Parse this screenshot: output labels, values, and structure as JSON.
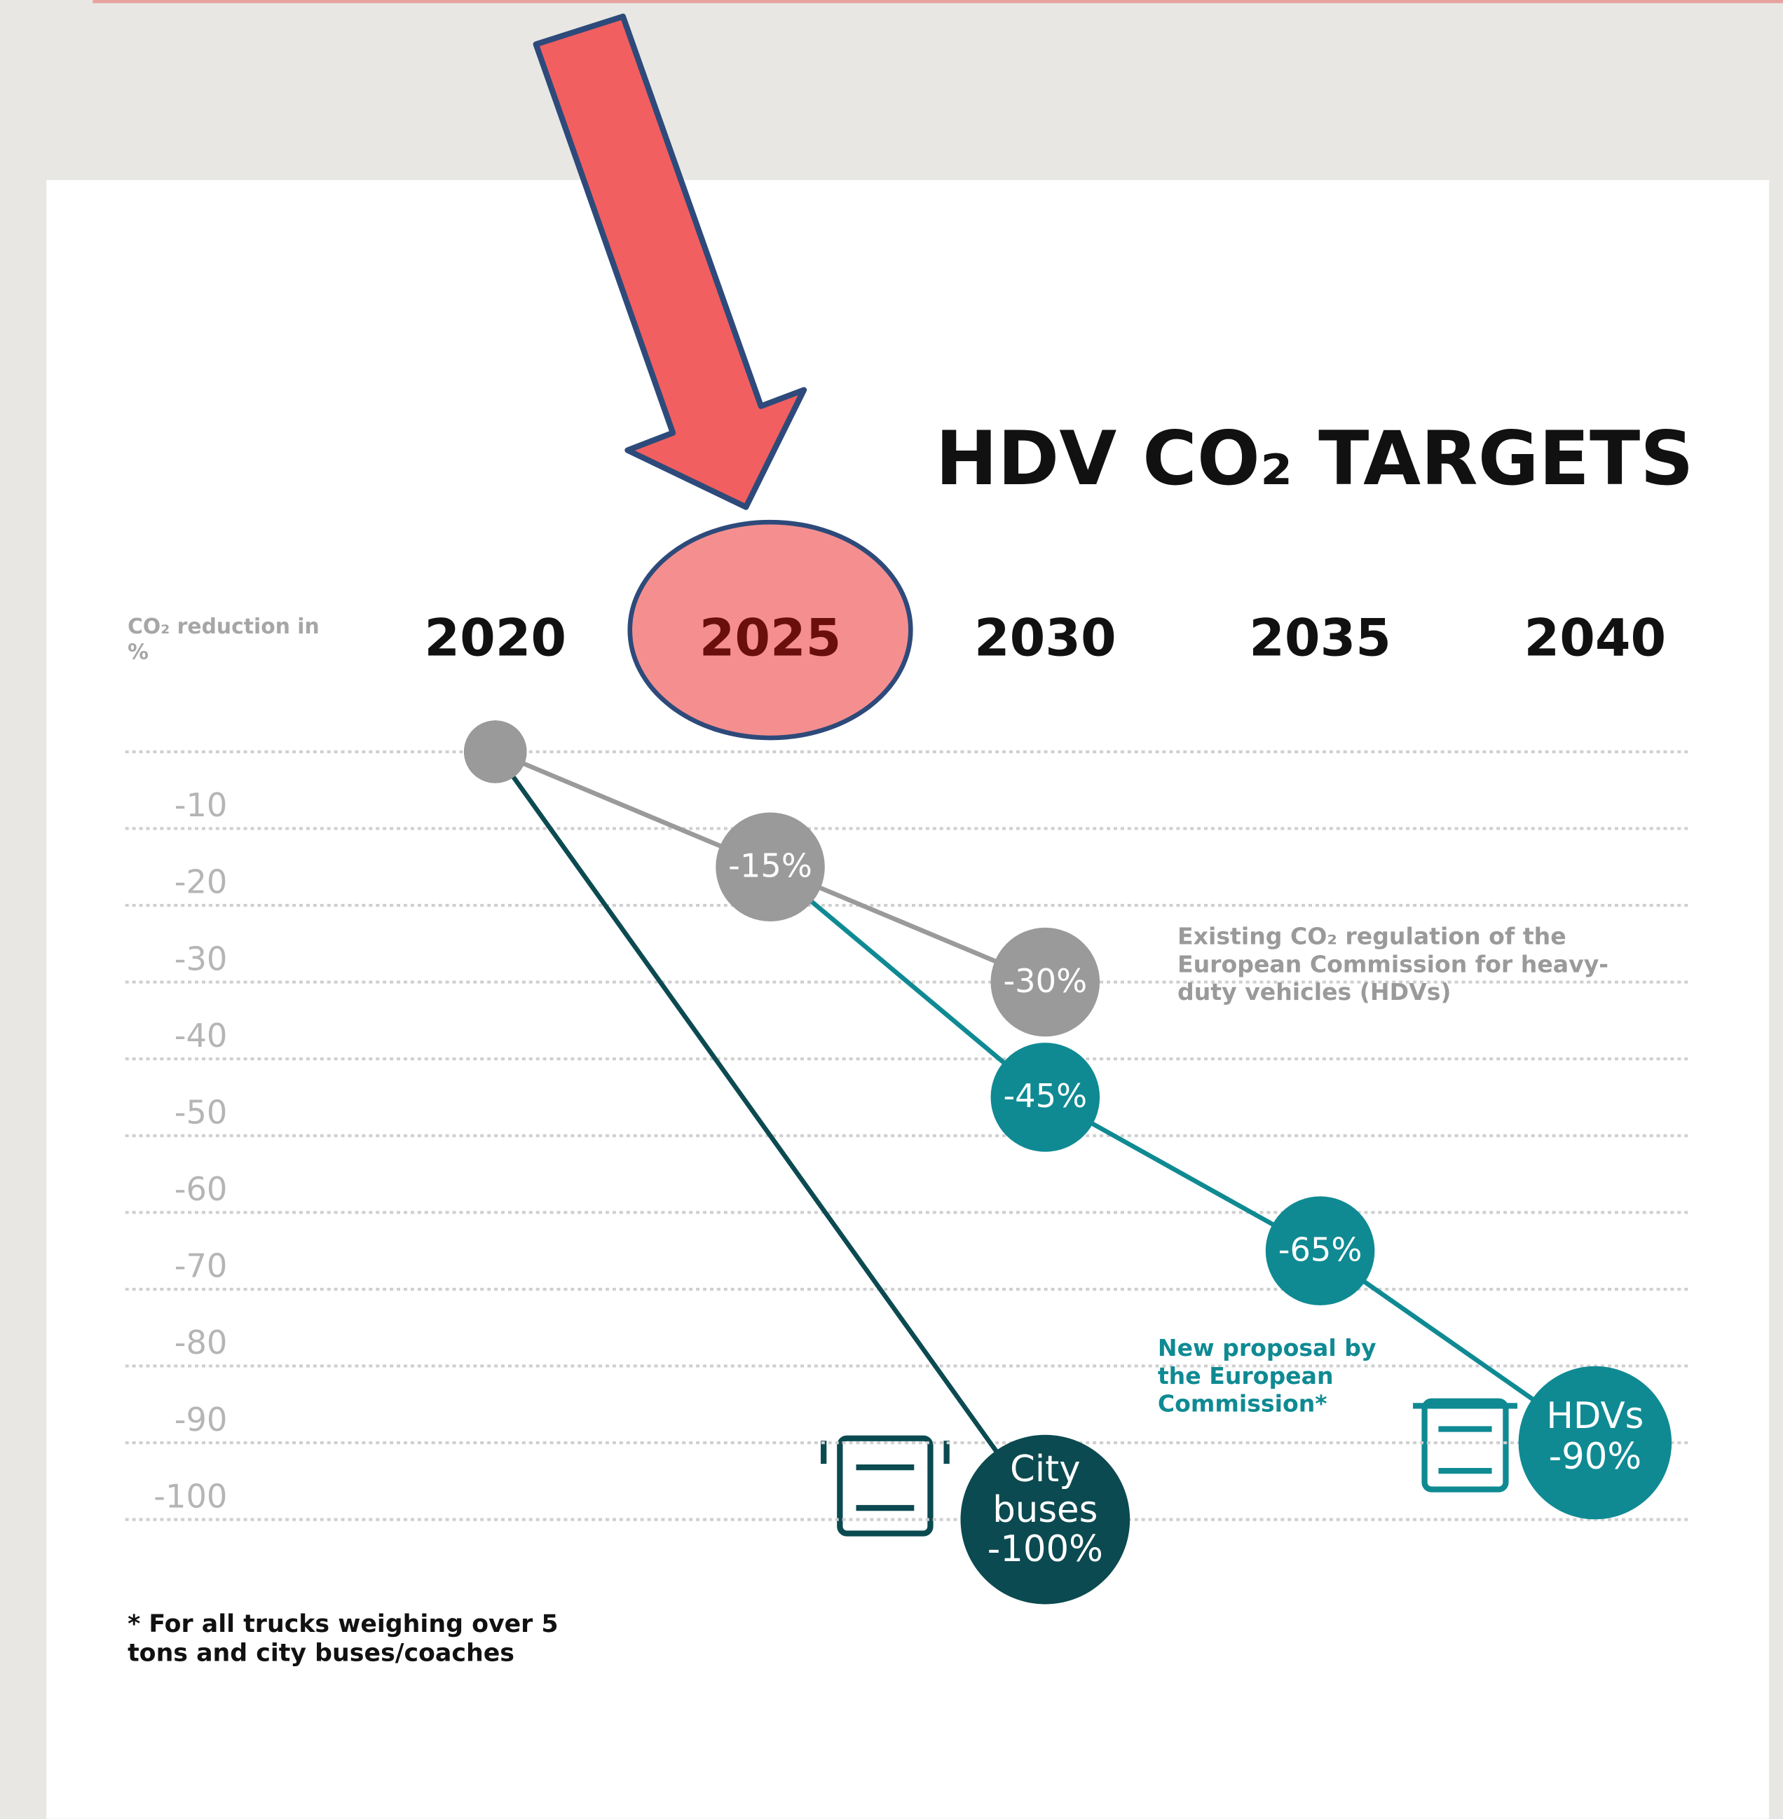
{
  "chart_data": {
    "type": "line",
    "title": "HDV CO₂ TARGETS",
    "y_label": "CO₂ reduction in %",
    "footnote": "* For all trucks weighing over 5 tons and city buses/coaches",
    "xlim": [
      2020,
      2040
    ],
    "xticks": [
      2020,
      2025,
      2030,
      2035,
      2040
    ],
    "ylim": [
      -100,
      0
    ],
    "yticks": [
      -10,
      -20,
      -30,
      -40,
      -50,
      -60,
      -70,
      -80,
      -90,
      -100
    ],
    "grid": true,
    "series": [
      {
        "name": "City buses",
        "color": "#0b4a50",
        "x": [
          2020,
          2030
        ],
        "values": [
          0,
          -100
        ],
        "value_labels": [
          null,
          "-100%"
        ]
      },
      {
        "name": "New proposal by the European Commission*",
        "end_label": "HDVs",
        "color": "#0f8a93",
        "x": [
          2025,
          2030,
          2035,
          2040
        ],
        "values": [
          -15,
          -45,
          -65,
          -90
        ],
        "value_labels": [
          null,
          "-45%",
          "-65%",
          "-90%"
        ]
      },
      {
        "name": "Existing CO₂ regulation of the European Commission for heavy-duty vehicles (HDVs)",
        "color": "#9a9a9a",
        "x": [
          2020,
          2025,
          2030
        ],
        "values": [
          0,
          -15,
          -30
        ],
        "value_labels": [
          null,
          "-15%",
          "-30%"
        ]
      }
    ]
  }
}
